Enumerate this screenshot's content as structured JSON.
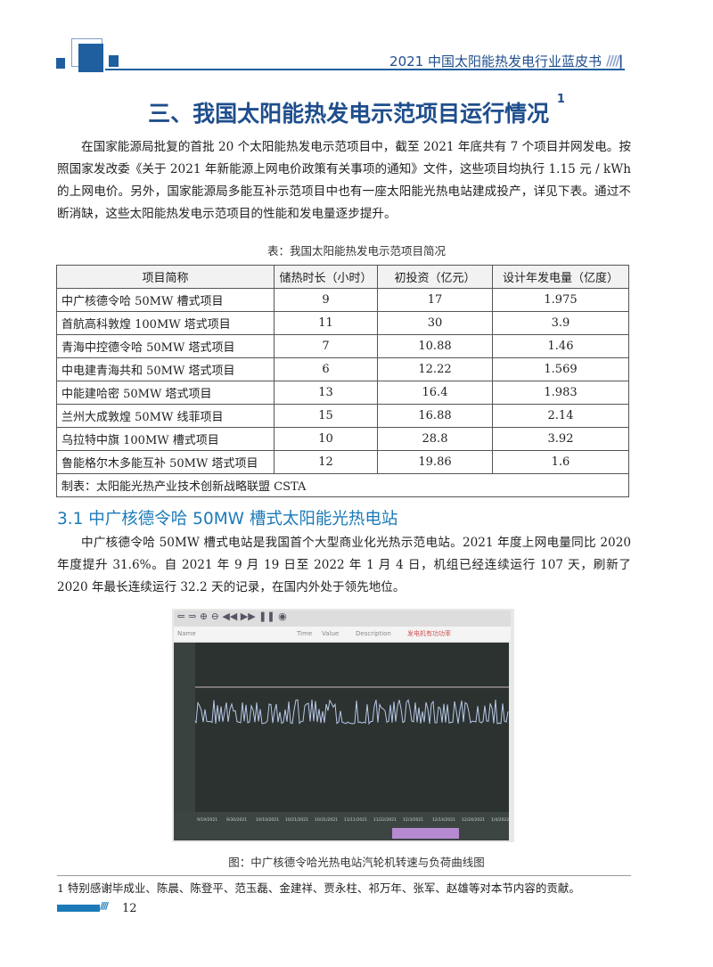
{
  "header": {
    "title": "2021 中国太阳能热发电行业蓝皮书",
    "brand_color": "#1f4e8c"
  },
  "section_title": "三、我国太阳能热发电示范项目运行情况",
  "section_footnote_mark": "1",
  "intro": "在国家能源局批复的首批 20 个太阳能热发电示范项目中，截至 2021 年底共有 7 个项目并网发电。按照国家发改委《关于 2021 年新能源上网电价政策有关事项的通知》文件，这些项目均执行 1.15 元 / kWh 的上网电价。另外，国家能源局多能互补示范项目中也有一座太阳能光热电站建成投产，详见下表。通过不断消缺，这些太阳能热发电示范项目的性能和发电量逐步提升。",
  "table": {
    "caption": "表：我国太阳能热发电示范项目简况",
    "headers": [
      "项目简称",
      "储热时长（小时）",
      "初投资（亿元）",
      "设计年发电量（亿度）"
    ],
    "rows": [
      [
        "中广核德令哈 50MW 槽式项目",
        "9",
        "17",
        "1.975"
      ],
      [
        "首航高科敦煌 100MW 塔式项目",
        "11",
        "30",
        "3.9"
      ],
      [
        "青海中控德令哈 50MW 塔式项目",
        "7",
        "10.88",
        "1.46"
      ],
      [
        "中电建青海共和 50MW 塔式项目",
        "6",
        "12.22",
        "1.569"
      ],
      [
        "中能建哈密 50MW 塔式项目",
        "13",
        "16.4",
        "1.983"
      ],
      [
        "兰州大成敦煌 50MW 线菲项目",
        "15",
        "16.88",
        "2.14"
      ],
      [
        "乌拉特中旗 100MW 槽式项目",
        "10",
        "28.8",
        "3.92"
      ],
      [
        "鲁能格尔木多能互补 50MW 塔式项目",
        "12",
        "19.86",
        "1.6"
      ]
    ],
    "source": "制表：太阳能光热产业技术创新战略联盟 CSTA"
  },
  "subsection_title": "3.1 中广核德令哈 50MW 槽式太阳能光热电站",
  "sub_text": "中广核德令哈 50MW 槽式电站是我国首个大型商业化光热示范电站。2021 年度上网电量同比 2020 年度提升 31.6%。自 2021 年 9 月 19 日至 2022 年 1 月 4 日，机组已经连续运行 107 天，刷新了 2020 年最长连续运行 32.2 天的记录，在国内外处于领先地位。",
  "figure": {
    "caption": "图：中广核德令哈光热电站汽轮机转速与负荷曲线图",
    "screen_labels": {
      "name": "Name",
      "time": "Time",
      "value": "Value",
      "description": "Description",
      "desc_value": "发电机有功功率"
    },
    "date_ticks": [
      "9/19/2021",
      "9/30/2021",
      "10/10/2021",
      "10/21/2021",
      "10/31/2021",
      "11/11/2021",
      "11/22/2021",
      "12/3/2021",
      "12/14/2021",
      "12/24/2021",
      "1/4/2022"
    ]
  },
  "footnote": "1 特别感谢毕成业、陈晨、陈登平、范玉磊、金建祥、贾永柱、祁万年、张军、赵雄等对本节内容的贡献。",
  "page_number": "12"
}
